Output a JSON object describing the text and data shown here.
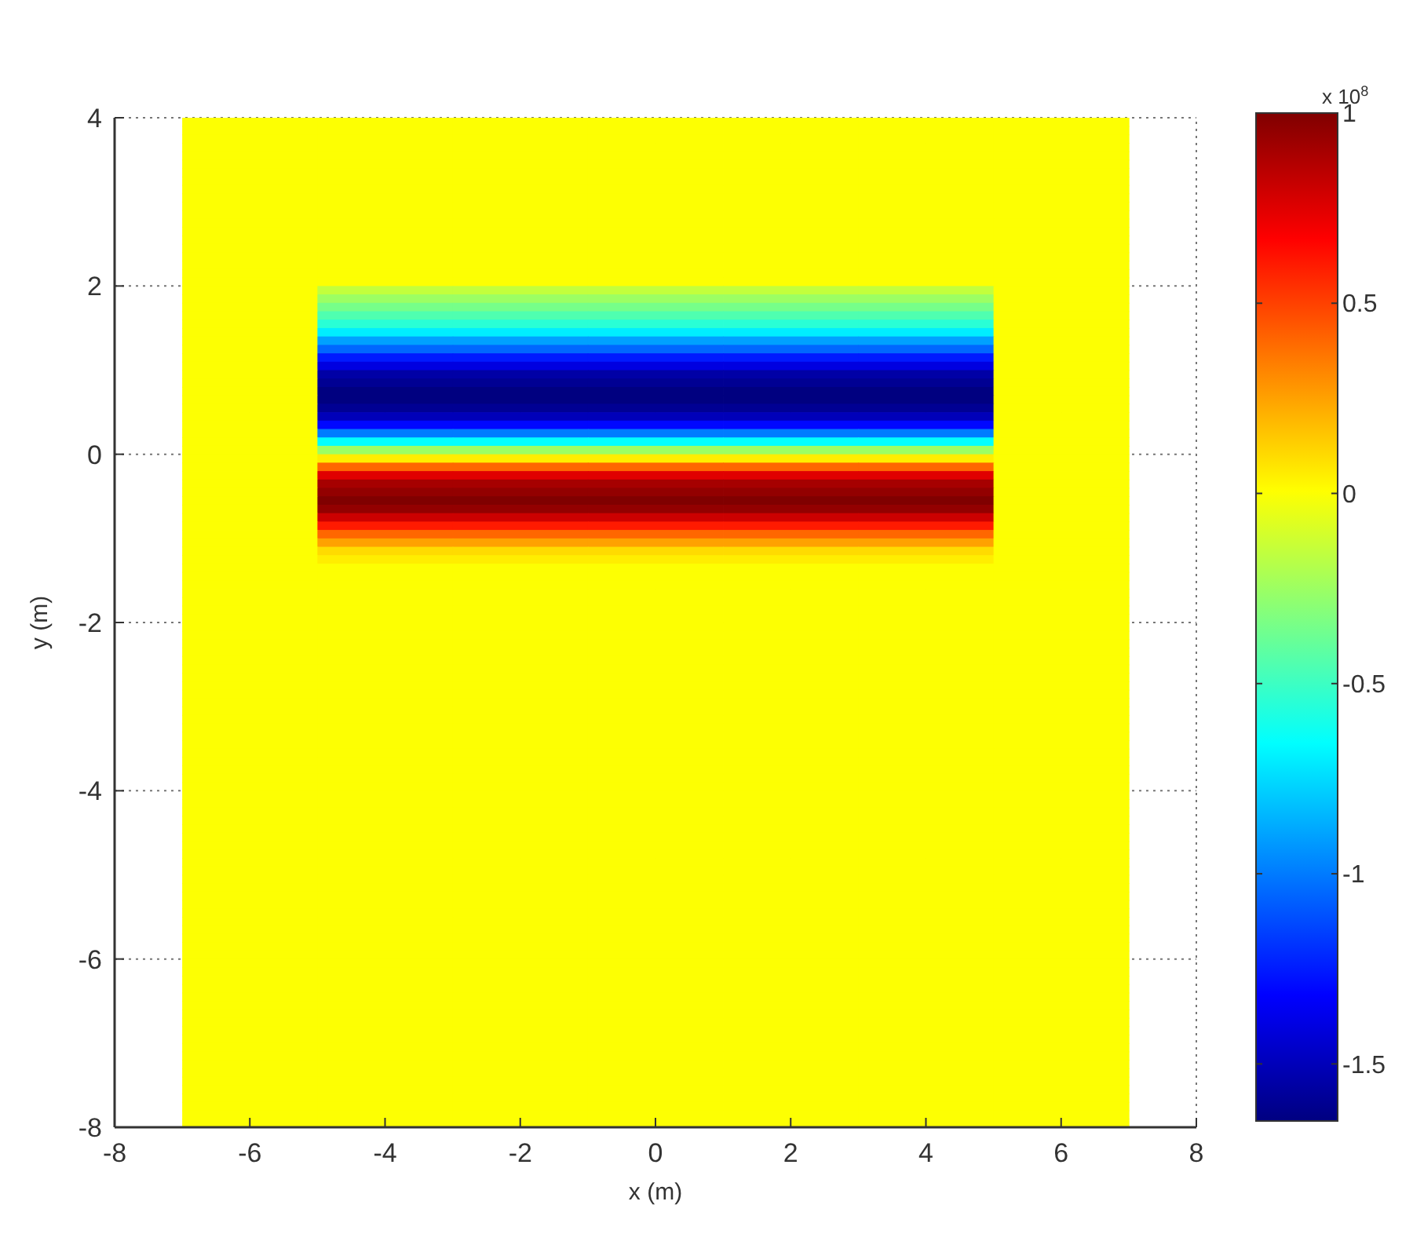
{
  "chart_data": {
    "type": "heatmap",
    "xlabel": "x (m)",
    "ylabel": "y (m)",
    "clabel": "x 10$^{8}$",
    "x": [
      -6,
      -4,
      -2,
      0,
      2,
      4,
      6
    ],
    "xlim": [
      -8,
      8
    ],
    "xticks": [
      -8,
      -6,
      -4,
      -2,
      0,
      2,
      4,
      6,
      8
    ],
    "ylim": [
      -8,
      4
    ],
    "yticks": [
      -8,
      -6,
      -4,
      -2,
      0,
      2,
      4
    ],
    "clim": [
      -1.65,
      1
    ],
    "cticks": [
      -1.5,
      -1,
      -0.5,
      0,
      0.5,
      1
    ],
    "grid": true,
    "cells": [
      [
        0,
        0,
        0,
        0,
        0,
        0,
        0
      ],
      [
        0,
        0,
        0,
        0,
        0,
        0,
        0
      ],
      [
        0,
        0,
        0,
        0,
        0,
        0,
        0
      ],
      [
        0,
        0,
        0,
        0,
        0,
        0,
        0
      ],
      [
        0,
        0,
        0,
        0,
        0,
        0,
        0
      ],
      [
        0,
        0,
        0,
        0,
        0,
        0,
        0
      ],
      [
        0,
        0,
        0,
        0,
        0,
        0,
        0
      ],
      [
        0,
        0,
        0,
        0,
        0,
        0,
        0
      ],
      [
        0,
        0,
        0,
        0,
        0,
        0,
        0
      ],
      [
        0,
        0,
        0,
        0,
        0,
        0,
        0
      ],
      [
        0,
        0,
        0,
        0,
        0,
        0,
        0
      ],
      [
        0,
        0,
        0,
        0,
        0,
        0,
        0
      ],
      [
        0,
        0,
        0,
        0,
        0,
        0,
        0
      ],
      [
        0,
        0,
        0,
        0,
        0,
        0,
        0
      ],
      [
        0,
        0,
        0,
        0,
        0,
        0,
        0
      ],
      [
        0,
        0,
        0,
        0,
        0,
        0,
        0
      ],
      [
        0,
        0,
        0,
        0,
        0,
        0,
        0
      ],
      [
        0,
        0,
        0,
        0,
        0,
        0,
        0
      ],
      [
        0,
        0,
        0,
        0,
        0,
        0,
        0
      ],
      [
        0,
        0,
        0,
        0,
        0,
        0,
        0
      ],
      [
        0,
        -0.15,
        -0.15,
        -0.15,
        -0.15,
        -0.15,
        0
      ],
      [
        0,
        -0.25,
        -0.25,
        -0.25,
        -0.25,
        -0.25,
        0
      ],
      [
        0,
        -0.35,
        -0.35,
        -0.35,
        -0.35,
        -0.35,
        0
      ],
      [
        0,
        -0.45,
        -0.45,
        -0.45,
        -0.45,
        -0.45,
        0
      ],
      [
        0,
        -0.55,
        -0.55,
        -0.55,
        -0.55,
        -0.55,
        0
      ],
      [
        0,
        -0.7,
        -0.7,
        -0.7,
        -0.7,
        -0.7,
        0
      ],
      [
        0,
        -0.9,
        -0.9,
        -0.9,
        -0.9,
        -0.9,
        0
      ],
      [
        0,
        -1.05,
        -1.05,
        -1.05,
        -1.05,
        -1.05,
        0
      ],
      [
        0,
        -1.25,
        -1.25,
        -1.25,
        -1.25,
        -1.25,
        0
      ],
      [
        0,
        -1.4,
        -1.4,
        -1.4,
        -1.4,
        -1.4,
        0
      ],
      [
        0,
        -1.55,
        -1.55,
        -1.55,
        -1.55,
        -1.55,
        0
      ],
      [
        0,
        -1.6,
        -1.6,
        -1.6,
        -1.6,
        -1.6,
        0
      ],
      [
        0,
        -1.65,
        -1.65,
        -1.65,
        -1.65,
        -1.65,
        0
      ],
      [
        0,
        -1.65,
        -1.65,
        -1.65,
        -1.65,
        -1.65,
        0
      ],
      [
        0,
        -1.6,
        -1.6,
        -1.6,
        -1.6,
        -1.6,
        0
      ],
      [
        0,
        -1.5,
        -1.5,
        -1.5,
        -1.5,
        -1.5,
        0
      ],
      [
        0,
        -1.3,
        -1.3,
        -1.3,
        -1.3,
        -1.3,
        0
      ],
      [
        0,
        -1,
        -1,
        -1,
        -1,
        -1,
        0
      ],
      [
        0,
        -0.65,
        -0.65,
        -0.65,
        -0.65,
        -0.65,
        0
      ],
      [
        0,
        -0.25,
        -0.25,
        -0.25,
        -0.25,
        -0.25,
        0
      ],
      [
        0,
        0.05,
        0.05,
        0.05,
        0.05,
        0.05,
        0
      ],
      [
        0,
        0.4,
        0.4,
        0.4,
        0.4,
        0.4,
        0
      ],
      [
        0,
        0.75,
        0.75,
        0.75,
        0.75,
        0.75,
        0
      ],
      [
        0,
        0.9,
        0.9,
        0.9,
        0.9,
        0.9,
        0
      ],
      [
        0,
        0.95,
        0.95,
        0.95,
        0.95,
        0.95,
        0
      ],
      [
        0,
        1,
        1,
        1,
        1,
        1,
        0
      ],
      [
        0,
        0.95,
        0.95,
        0.95,
        0.95,
        0.95,
        0
      ],
      [
        0,
        0.8,
        0.8,
        0.8,
        0.8,
        0.8,
        0
      ],
      [
        0,
        0.6,
        0.6,
        0.6,
        0.6,
        0.6,
        0
      ],
      [
        0,
        0.4,
        0.4,
        0.4,
        0.4,
        0.4,
        0
      ],
      [
        0,
        0.25,
        0.25,
        0.25,
        0.25,
        0.25,
        0
      ],
      [
        0,
        0.1,
        0.1,
        0.1,
        0.1,
        0.1,
        0
      ],
      [
        0,
        0.05,
        0.05,
        0.05,
        0.05,
        0.05,
        0
      ],
      [
        0,
        0,
        0,
        0,
        0,
        0,
        0
      ],
      [
        0,
        0,
        0,
        0,
        0,
        0,
        0
      ],
      [
        0,
        0,
        0,
        0,
        0,
        0,
        0
      ],
      [
        0,
        0,
        0,
        0,
        0,
        0,
        0
      ],
      [
        0,
        0,
        0,
        0,
        0,
        0,
        0
      ],
      [
        0,
        0,
        0,
        0,
        0,
        0,
        0
      ],
      [
        0,
        0,
        0,
        0,
        0,
        0,
        0
      ],
      [
        0,
        0,
        0,
        0,
        0,
        0,
        0
      ],
      [
        0,
        0,
        0,
        0,
        0,
        0,
        0
      ],
      [
        0,
        0,
        0,
        0,
        0,
        0,
        0
      ],
      [
        0,
        0,
        0,
        0,
        0,
        0,
        0
      ],
      [
        0,
        0,
        0,
        0,
        0,
        0,
        0
      ],
      [
        0,
        0,
        0,
        0,
        0,
        0,
        0
      ],
      [
        0,
        0,
        0,
        0,
        0,
        0,
        0
      ],
      [
        0,
        0,
        0,
        0,
        0,
        0,
        0
      ],
      [
        0,
        0,
        0,
        0,
        0,
        0,
        0
      ],
      [
        0,
        0,
        0,
        0,
        0,
        0,
        0
      ],
      [
        0,
        0,
        0,
        0,
        0,
        0,
        0
      ],
      [
        0,
        0,
        0,
        0,
        0,
        0,
        0
      ],
      [
        0,
        0,
        0,
        0,
        0,
        0,
        0
      ],
      [
        0,
        0,
        0,
        0,
        0,
        0,
        0
      ],
      [
        0,
        0,
        0,
        0,
        0,
        0,
        0
      ],
      [
        0,
        0,
        0,
        0,
        0,
        0,
        0
      ],
      [
        0,
        0,
        0,
        0,
        0,
        0,
        0
      ],
      [
        0,
        0,
        0,
        0,
        0,
        0,
        0
      ],
      [
        0,
        0,
        0,
        0,
        0,
        0,
        0
      ],
      [
        0,
        0,
        0,
        0,
        0,
        0,
        0
      ],
      [
        0,
        0,
        0,
        0,
        0,
        0,
        0
      ],
      [
        0,
        0,
        0,
        0,
        0,
        0,
        0
      ],
      [
        0,
        0,
        0,
        0,
        0,
        0,
        0
      ],
      [
        0,
        0,
        0,
        0,
        0,
        0,
        0
      ],
      [
        0,
        0,
        0,
        0,
        0,
        0,
        0
      ],
      [
        0,
        0,
        0,
        0,
        0,
        0,
        0
      ],
      [
        0,
        0,
        0,
        0,
        0,
        0,
        0
      ],
      [
        0,
        0,
        0,
        0,
        0,
        0,
        0
      ],
      [
        0,
        0,
        0,
        0,
        0,
        0,
        0
      ],
      [
        0,
        0,
        0,
        0,
        0,
        0,
        0
      ],
      [
        0,
        0,
        0,
        0,
        0,
        0,
        0
      ],
      [
        0,
        0,
        0,
        0,
        0,
        0,
        0
      ],
      [
        0,
        0,
        0,
        0,
        0,
        0,
        0
      ],
      [
        0,
        0,
        0,
        0,
        0,
        0,
        0
      ],
      [
        0,
        0,
        0,
        0,
        0,
        0,
        0
      ],
      [
        0,
        0,
        0,
        0,
        0,
        0,
        0
      ],
      [
        0,
        0,
        0,
        0,
        0,
        0,
        0
      ],
      [
        0,
        0,
        0,
        0,
        0,
        0,
        0
      ],
      [
        0,
        0,
        0,
        0,
        0,
        0,
        0
      ],
      [
        0,
        0,
        0,
        0,
        0,
        0,
        0
      ],
      [
        0,
        0,
        0,
        0,
        0,
        0,
        0
      ],
      [
        0,
        0,
        0,
        0,
        0,
        0,
        0
      ],
      [
        0,
        0,
        0,
        0,
        0,
        0,
        0
      ],
      [
        0,
        0,
        0,
        0,
        0,
        0,
        0
      ],
      [
        0,
        0,
        0,
        0,
        0,
        0,
        0
      ],
      [
        0,
        0,
        0,
        0,
        0,
        0,
        0
      ],
      [
        0,
        0,
        0,
        0,
        0,
        0,
        0
      ],
      [
        0,
        0,
        0,
        0,
        0,
        0,
        0
      ],
      [
        0,
        0,
        0,
        0,
        0,
        0,
        0
      ],
      [
        0,
        0,
        0,
        0,
        0,
        0,
        0
      ],
      [
        0,
        0,
        0,
        0,
        0,
        0,
        0
      ],
      [
        0,
        0,
        0,
        0,
        0,
        0,
        0
      ],
      [
        0,
        0,
        0,
        0,
        0,
        0,
        0
      ],
      [
        0,
        0,
        0,
        0,
        0,
        0,
        0
      ],
      [
        0,
        0,
        0,
        0,
        0,
        0,
        0
      ],
      [
        0,
        0,
        0,
        0,
        0,
        0,
        0
      ],
      [
        0,
        0,
        0,
        0,
        0,
        0,
        0
      ],
      [
        0,
        0,
        0,
        0,
        0,
        0,
        0
      ],
      [
        0,
        0,
        0,
        0,
        0,
        0,
        0
      ],
      [
        0,
        0,
        0,
        0,
        0,
        0,
        0
      ]
    ]
  }
}
